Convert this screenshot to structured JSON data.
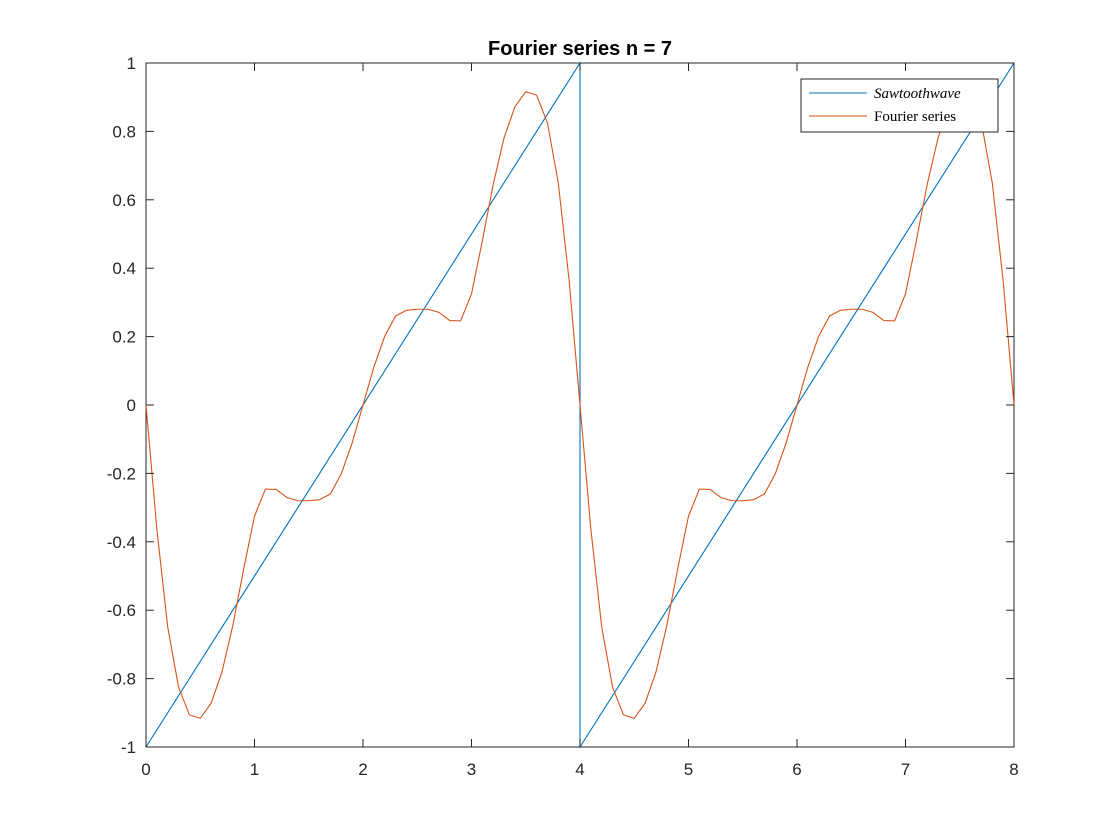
{
  "chart_data": {
    "type": "line",
    "title": "Fourier series n = 7",
    "xlabel": "",
    "ylabel": "",
    "xlim": [
      0,
      8
    ],
    "ylim": [
      -1,
      1
    ],
    "xticks": [
      0,
      1,
      2,
      3,
      4,
      5,
      6,
      7,
      8
    ],
    "xtick_labels": [
      "0",
      "1",
      "2",
      "3",
      "4",
      "5",
      "6",
      "7",
      "8"
    ],
    "yticks": [
      -1,
      -0.8,
      -0.6,
      -0.4,
      -0.2,
      0,
      0.2,
      0.4,
      0.6,
      0.8,
      1
    ],
    "ytick_labels": [
      "-1",
      "-0.8",
      "-0.6",
      "-0.4",
      "-0.2",
      "0",
      "0.2",
      "0.4",
      "0.6",
      "0.8",
      "1"
    ],
    "grid": false,
    "legend_position": "top-right",
    "series": [
      {
        "name": "Sawtoothwave",
        "color": "#0072BD",
        "x": [
          0,
          4,
          4,
          8
        ],
        "y": [
          -1,
          1,
          -1,
          1
        ]
      },
      {
        "name": "Fourier series",
        "color": "#D95319",
        "x": [
          0,
          0.1,
          0.2,
          0.3,
          0.4,
          0.5,
          0.6,
          0.7,
          0.8,
          0.9,
          1.0,
          1.1,
          1.2,
          1.3,
          1.4,
          1.5,
          1.6,
          1.7,
          1.8,
          1.9,
          2.0,
          2.1,
          2.2,
          2.3,
          2.4,
          2.5,
          2.6,
          2.7,
          2.8,
          2.9,
          3.0,
          3.1,
          3.2,
          3.3,
          3.4,
          3.5,
          3.6,
          3.7,
          3.8,
          3.9,
          4.0,
          4.1,
          4.2,
          4.3,
          4.4,
          4.5,
          4.6,
          4.7,
          4.8,
          4.9,
          5.0,
          5.1,
          5.2,
          5.3,
          5.4,
          5.5,
          5.6,
          5.7,
          5.8,
          5.9,
          6.0,
          6.1,
          6.2,
          6.3,
          6.4,
          6.5,
          6.6,
          6.7,
          6.8,
          6.9,
          7.0,
          7.1,
          7.2,
          7.3,
          7.4,
          7.5,
          7.6,
          7.7,
          7.8,
          7.9,
          8.0
        ],
        "y": [
          0,
          -0.363,
          -0.649,
          -0.825,
          -0.906,
          -0.916,
          -0.872,
          -0.781,
          -0.645,
          -0.48,
          -0.325,
          -0.246,
          -0.247,
          -0.271,
          -0.28,
          -0.28,
          -0.277,
          -0.26,
          -0.201,
          -0.111,
          0,
          0.111,
          0.201,
          0.26,
          0.277,
          0.28,
          0.28,
          0.271,
          0.247,
          0.246,
          0.325,
          0.48,
          0.645,
          0.781,
          0.872,
          0.916,
          0.906,
          0.825,
          0.649,
          0.363,
          0,
          -0.363,
          -0.649,
          -0.825,
          -0.906,
          -0.916,
          -0.872,
          -0.781,
          -0.645,
          -0.48,
          -0.325,
          -0.246,
          -0.247,
          -0.271,
          -0.28,
          -0.28,
          -0.277,
          -0.26,
          -0.201,
          -0.111,
          0,
          0.111,
          0.201,
          0.26,
          0.277,
          0.28,
          0.28,
          0.271,
          0.247,
          0.246,
          0.325,
          0.48,
          0.645,
          0.781,
          0.872,
          0.916,
          0.906,
          0.825,
          0.649,
          0.363,
          0
        ]
      }
    ]
  }
}
